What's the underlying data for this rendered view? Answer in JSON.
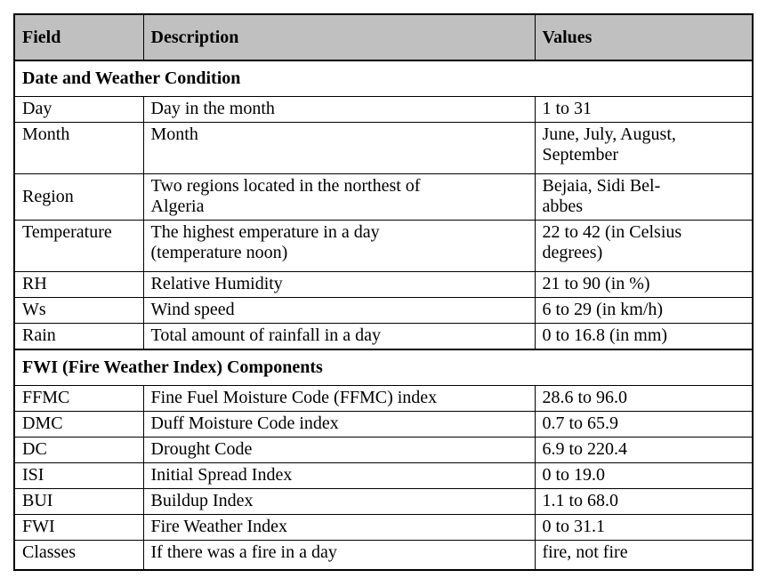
{
  "table": {
    "columns": [
      "Field",
      "Description",
      "Values"
    ],
    "sections": [
      {
        "title": "Date and Weather Condition",
        "rows": [
          {
            "field": "Day",
            "description": "Day in the month",
            "values": "1 to 31"
          },
          {
            "field": "Month",
            "description": "Month",
            "values": "June, July, August,\nSeptember"
          },
          {
            "field": "Region",
            "description": "Two regions located in the northest of\nAlgeria",
            "values": "Bejaia, Sidi Bel-\nabbes"
          },
          {
            "field": "Temperature",
            "description": "The highest emperature in a day\n(temperature noon)",
            "values": "22 to 42 (in Celsius\ndegrees)"
          },
          {
            "field": "RH",
            "description": "Relative Humidity",
            "values": "21 to 90 (in %)"
          },
          {
            "field": "Ws",
            "description": "Wind speed",
            "values": "6 to 29 (in km/h)"
          },
          {
            "field": "Rain",
            "description": "Total amount of rainfall in a day",
            "values": "0 to 16.8 (in mm)"
          }
        ]
      },
      {
        "title": "FWI (Fire Weather Index) Components",
        "rows": [
          {
            "field": "FFMC",
            "description": "Fine Fuel Moisture Code (FFMC) index",
            "values": "28.6 to 96.0"
          },
          {
            "field": "DMC",
            "description": "Duff Moisture Code index",
            "values": "0.7 to 65.9"
          },
          {
            "field": "DC",
            "description": "Drought Code",
            "values": "6.9 to 220.4"
          },
          {
            "field": "ISI",
            "description": "Initial Spread Index",
            "values": "0 to 19.0"
          },
          {
            "field": "BUI",
            "description": "Buildup Index",
            "values": "1.1 to 68.0"
          },
          {
            "field": "FWI",
            "description": "Fire Weather Index",
            "values": "0 to 31.1"
          },
          {
            "field": "Classes",
            "description": "If there was a fire in a day",
            "values": "fire, not fire"
          }
        ]
      }
    ],
    "colors": {
      "header_bg": "#c0c0c0",
      "border": "#000000",
      "text": "#000000",
      "page_bg": "#ffffff"
    }
  }
}
